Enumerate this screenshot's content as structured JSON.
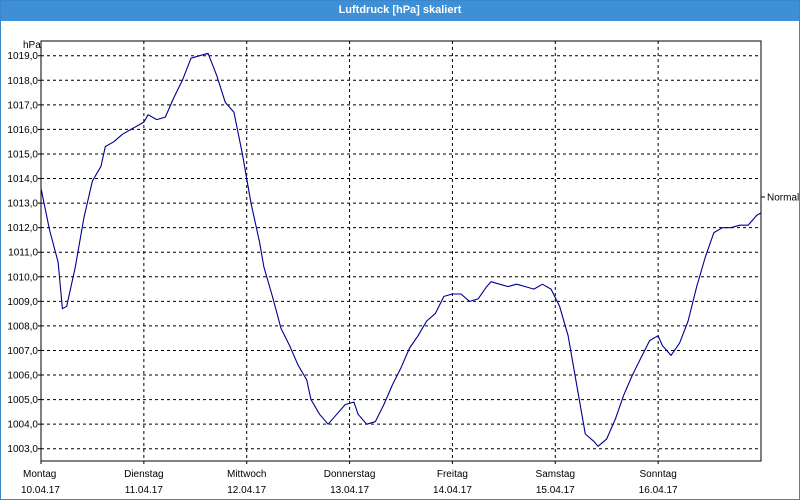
{
  "window": {
    "title": "Luftdruck [hPa] skaliert"
  },
  "chart_data": {
    "type": "line",
    "title": "Luftdruck [hPa] skaliert",
    "ylabel": "hPa",
    "ylim": [
      1002.5,
      1019.6
    ],
    "y_ticks": [
      "1003,0",
      "1004,0",
      "1005,0",
      "1006,0",
      "1007,0",
      "1008,0",
      "1009,0",
      "1010,0",
      "1011,0",
      "1012,0",
      "1013,0",
      "1014,0",
      "1015,0",
      "1016,0",
      "1017,0",
      "1018,0",
      "1019,0"
    ],
    "y_tick_values": [
      1003,
      1004,
      1005,
      1006,
      1007,
      1008,
      1009,
      1010,
      1011,
      1012,
      1013,
      1014,
      1015,
      1016,
      1017,
      1018,
      1019
    ],
    "xlim": [
      "10.04.17 00:00",
      "17.04.17 00:00"
    ],
    "x_ticks": [
      {
        "day": "Montag",
        "date": "10.04.17"
      },
      {
        "day": "Dienstag",
        "date": "11.04.17"
      },
      {
        "day": "Mittwoch",
        "date": "12.04.17"
      },
      {
        "day": "Donnerstag",
        "date": "13.04.17"
      },
      {
        "day": "Freitag",
        "date": "14.04.17"
      },
      {
        "day": "Samstag",
        "date": "15.04.17"
      },
      {
        "day": "Sonntag",
        "date": "16.04.17"
      }
    ],
    "reference_line": {
      "label": "Normal"
    },
    "grid": true,
    "series": [
      {
        "color": "#00008b",
        "points": [
          [
            "10.04.17 00:00",
            1013.6
          ],
          [
            "10.04.17 02:00",
            1011.9
          ],
          [
            "10.04.17 04:00",
            1010.6
          ],
          [
            "10.04.17 05:00",
            1008.7
          ],
          [
            "10.04.17 06:00",
            1008.8
          ],
          [
            "10.04.17 08:00",
            1010.4
          ],
          [
            "10.04.17 10:00",
            1012.4
          ],
          [
            "10.04.17 12:00",
            1013.9
          ],
          [
            "10.04.17 14:00",
            1014.5
          ],
          [
            "10.04.17 15:00",
            1015.3
          ],
          [
            "10.04.17 17:00",
            1015.5
          ],
          [
            "10.04.17 19:00",
            1015.8
          ],
          [
            "10.04.17 21:00",
            1016.0
          ],
          [
            "11.04.17 00:00",
            1016.3
          ],
          [
            "11.04.17 01:00",
            1016.6
          ],
          [
            "11.04.17 03:00",
            1016.4
          ],
          [
            "11.04.17 05:00",
            1016.5
          ],
          [
            "11.04.17 07:00",
            1017.3
          ],
          [
            "11.04.17 09:00",
            1018.0
          ],
          [
            "11.04.17 11:00",
            1018.9
          ],
          [
            "11.04.17 13:00",
            1019.0
          ],
          [
            "11.04.17 15:00",
            1019.1
          ],
          [
            "11.04.17 17:00",
            1018.2
          ],
          [
            "11.04.17 19:00",
            1017.1
          ],
          [
            "11.04.17 21:00",
            1016.7
          ],
          [
            "11.04.17 23:00",
            1015.0
          ],
          [
            "12.04.17 01:00",
            1013.0
          ],
          [
            "12.04.17 03:00",
            1011.4
          ],
          [
            "12.04.17 04:00",
            1010.4
          ],
          [
            "12.04.17 06:00",
            1009.2
          ],
          [
            "12.04.17 08:00",
            1007.9
          ],
          [
            "12.04.17 10:00",
            1007.2
          ],
          [
            "12.04.17 12:00",
            1006.4
          ],
          [
            "12.04.17 14:00",
            1005.8
          ],
          [
            "12.04.17 15:00",
            1005.0
          ],
          [
            "12.04.17 17:00",
            1004.4
          ],
          [
            "12.04.17 19:00",
            1004.0
          ],
          [
            "12.04.17 21:00",
            1004.4
          ],
          [
            "12.04.17 23:00",
            1004.8
          ],
          [
            "13.04.17 01:00",
            1004.9
          ],
          [
            "13.04.17 02:00",
            1004.4
          ],
          [
            "13.04.17 04:00",
            1004.0
          ],
          [
            "13.04.17 06:00",
            1004.1
          ],
          [
            "13.04.17 08:00",
            1004.8
          ],
          [
            "13.04.17 10:00",
            1005.6
          ],
          [
            "13.04.17 12:00",
            1006.3
          ],
          [
            "13.04.17 14:00",
            1007.1
          ],
          [
            "13.04.17 16:00",
            1007.6
          ],
          [
            "13.04.17 18:00",
            1008.2
          ],
          [
            "13.04.17 20:00",
            1008.5
          ],
          [
            "13.04.17 22:00",
            1009.2
          ],
          [
            "14.04.17 00:00",
            1009.3
          ],
          [
            "14.04.17 02:00",
            1009.3
          ],
          [
            "14.04.17 04:00",
            1009.0
          ],
          [
            "14.04.17 06:00",
            1009.1
          ],
          [
            "14.04.17 08:00",
            1009.6
          ],
          [
            "14.04.17 09:00",
            1009.8
          ],
          [
            "14.04.17 11:00",
            1009.7
          ],
          [
            "14.04.17 13:00",
            1009.6
          ],
          [
            "14.04.17 15:00",
            1009.7
          ],
          [
            "14.04.17 17:00",
            1009.6
          ],
          [
            "14.04.17 19:00",
            1009.5
          ],
          [
            "14.04.17 21:00",
            1009.7
          ],
          [
            "14.04.17 23:00",
            1009.5
          ],
          [
            "15.04.17 01:00",
            1008.8
          ],
          [
            "15.04.17 03:00",
            1007.6
          ],
          [
            "15.04.17 05:00",
            1005.6
          ],
          [
            "15.04.17 07:00",
            1003.6
          ],
          [
            "15.04.17 09:00",
            1003.3
          ],
          [
            "15.04.17 10:00",
            1003.1
          ],
          [
            "15.04.17 12:00",
            1003.4
          ],
          [
            "15.04.17 14:00",
            1004.2
          ],
          [
            "15.04.17 16:00",
            1005.2
          ],
          [
            "15.04.17 18:00",
            1006.0
          ],
          [
            "15.04.17 20:00",
            1006.7
          ],
          [
            "15.04.17 22:00",
            1007.4
          ],
          [
            "16.04.17 00:00",
            1007.6
          ],
          [
            "16.04.17 01:00",
            1007.2
          ],
          [
            "16.04.17 03:00",
            1006.8
          ],
          [
            "16.04.17 05:00",
            1007.3
          ],
          [
            "16.04.17 07:00",
            1008.2
          ],
          [
            "16.04.17 09:00",
            1009.6
          ],
          [
            "16.04.17 11:00",
            1010.8
          ],
          [
            "16.04.17 13:00",
            1011.8
          ],
          [
            "16.04.17 15:00",
            1012.0
          ],
          [
            "16.04.17 17:00",
            1012.0
          ],
          [
            "16.04.17 19:00",
            1012.1
          ],
          [
            "16.04.17 21:00",
            1012.1
          ],
          [
            "16.04.17 23:00",
            1012.5
          ],
          [
            "17.04.17 00:00",
            1012.6
          ]
        ]
      }
    ]
  }
}
